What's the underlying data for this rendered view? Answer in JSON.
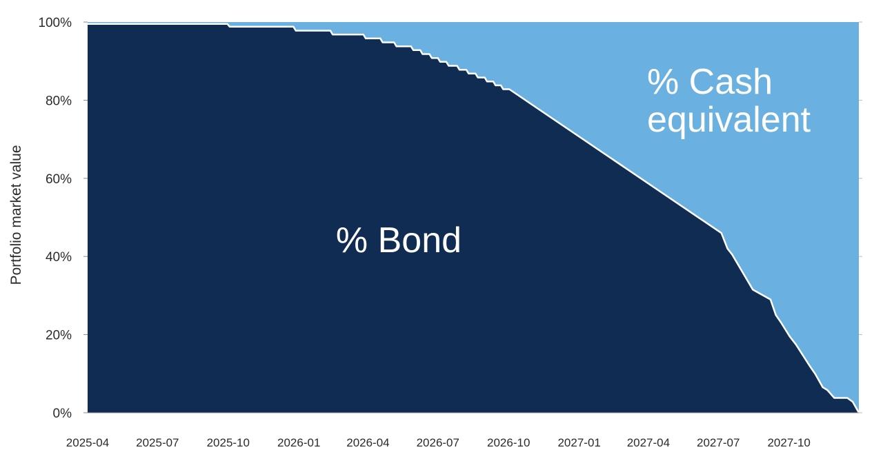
{
  "chart_data": {
    "type": "area",
    "ylabel": "Portfolio market value",
    "ylim": [
      0,
      100
    ],
    "yticks": [
      "0%",
      "20%",
      "40%",
      "60%",
      "80%",
      "100%"
    ],
    "xlim": [
      "2025-04-01",
      "2027-12-31"
    ],
    "xticks": [
      "2025-04",
      "2025-07",
      "2025-10",
      "2026-01",
      "2026-04",
      "2026-07",
      "2026-10",
      "2027-01",
      "2027-04",
      "2027-07",
      "2027-10"
    ],
    "grid": false,
    "series": [
      {
        "name": "% Bond",
        "color": "#112C52",
        "label_lines": [
          "% Bond"
        ],
        "points": [
          [
            "2025-04-01",
            99.5
          ],
          [
            "2025-09-30",
            99.5
          ],
          [
            "2025-10-03",
            98.8
          ],
          [
            "2025-12-25",
            98.8
          ],
          [
            "2025-12-28",
            97.8
          ],
          [
            "2026-02-11",
            97.8
          ],
          [
            "2026-02-14",
            96.8
          ],
          [
            "2026-03-26",
            96.8
          ],
          [
            "2026-03-29",
            95.8
          ],
          [
            "2026-04-17",
            95.8
          ],
          [
            "2026-04-20",
            94.8
          ],
          [
            "2026-05-05",
            94.8
          ],
          [
            "2026-05-08",
            93.8
          ],
          [
            "2026-05-27",
            93.8
          ],
          [
            "2026-05-30",
            92.8
          ],
          [
            "2026-06-08",
            92.8
          ],
          [
            "2026-06-11",
            91.8
          ],
          [
            "2026-06-20",
            91.8
          ],
          [
            "2026-06-23",
            90.8
          ],
          [
            "2026-07-01",
            90.8
          ],
          [
            "2026-07-04",
            89.8
          ],
          [
            "2026-07-12",
            89.8
          ],
          [
            "2026-07-15",
            88.8
          ],
          [
            "2026-07-26",
            88.8
          ],
          [
            "2026-07-29",
            87.8
          ],
          [
            "2026-08-07",
            87.8
          ],
          [
            "2026-08-10",
            86.8
          ],
          [
            "2026-08-19",
            86.8
          ],
          [
            "2026-08-22",
            85.8
          ],
          [
            "2026-08-31",
            85.8
          ],
          [
            "2026-09-03",
            84.8
          ],
          [
            "2026-09-11",
            84.8
          ],
          [
            "2026-09-14",
            83.8
          ],
          [
            "2026-09-21",
            83.8
          ],
          [
            "2026-09-24",
            82.8
          ],
          [
            "2026-10-02",
            82.8
          ],
          [
            "2027-07-05",
            46.0
          ],
          [
            "2027-07-13",
            42.0
          ],
          [
            "2027-07-19",
            40.5
          ],
          [
            "2027-08-15",
            31.5
          ],
          [
            "2027-09-07",
            29.0
          ],
          [
            "2027-09-14",
            25.0
          ],
          [
            "2027-09-21",
            23.0
          ],
          [
            "2027-10-02",
            19.5
          ],
          [
            "2027-10-10",
            17.5
          ],
          [
            "2027-10-28",
            12.0
          ],
          [
            "2027-11-04",
            10.0
          ],
          [
            "2027-11-14",
            6.5
          ],
          [
            "2027-11-20",
            5.8
          ],
          [
            "2027-11-29",
            3.8
          ],
          [
            "2027-12-16",
            3.8
          ],
          [
            "2027-12-23",
            2.8
          ],
          [
            "2027-12-31",
            0.0
          ]
        ]
      },
      {
        "name": "% Cash equivalent",
        "color": "#6AB1E1",
        "label_lines": [
          "% Cash",
          "equivalent"
        ],
        "note": "fills the remainder to 100%"
      }
    ]
  }
}
